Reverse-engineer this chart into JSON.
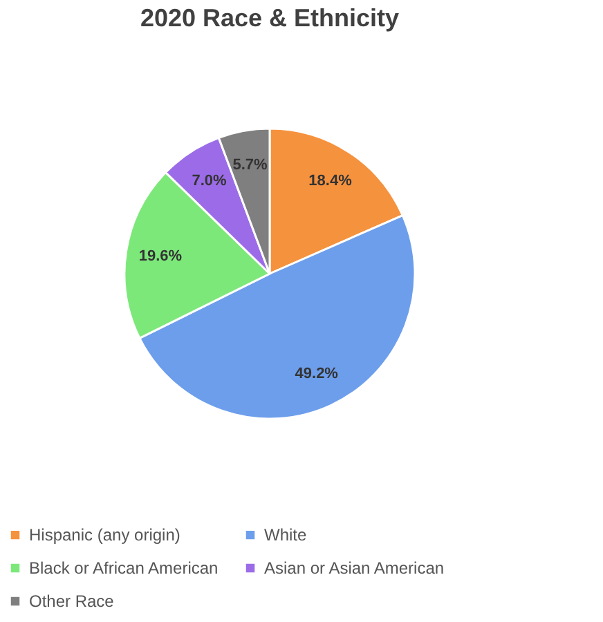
{
  "chart_data": {
    "type": "pie",
    "title": "2020 Race & Ethnicity",
    "categories": [
      "Hispanic (any origin)",
      "White",
      "Black or African American",
      "Asian or Asian American",
      "Other Race"
    ],
    "values": [
      18.4,
      49.2,
      19.6,
      7.0,
      5.7
    ],
    "value_labels": [
      "18.4%",
      "49.2%",
      "19.6%",
      "7.0%",
      "5.7%"
    ],
    "colors": [
      "#f5923e",
      "#6d9eeb",
      "#7de87a",
      "#9c6ce8",
      "#7f7f7f"
    ],
    "legend": "bottom"
  }
}
